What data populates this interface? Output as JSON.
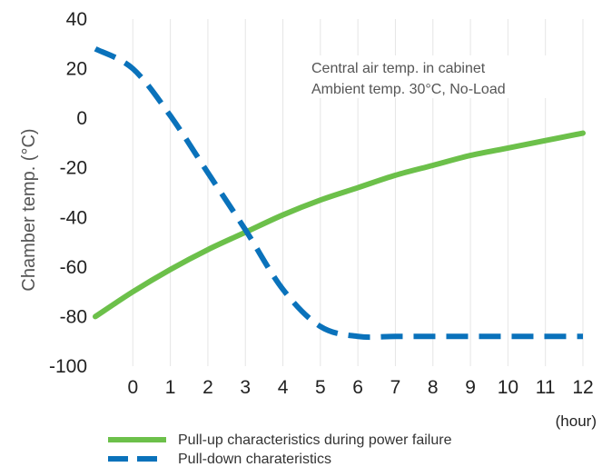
{
  "chart_data": {
    "type": "line",
    "title": "",
    "xlabel": "(hour)",
    "ylabel": "Chamber temp. (°C)",
    "xlim": [
      -1,
      12
    ],
    "ylim": [
      -100,
      40
    ],
    "x_ticks": [
      0,
      1,
      2,
      3,
      4,
      5,
      6,
      7,
      8,
      9,
      10,
      11,
      12
    ],
    "y_ticks": [
      40,
      20,
      0,
      -20,
      -40,
      -60,
      -80,
      -100
    ],
    "x_tick_labels": [
      "0",
      "1",
      "2",
      "3",
      "4",
      "5",
      "6",
      "7",
      "8",
      "9",
      "10",
      "11",
      "12"
    ],
    "y_tick_labels": [
      "40",
      "20",
      "0",
      "-20",
      "-40",
      "-60",
      "-80",
      "-100"
    ],
    "grid": "vertical",
    "annotation": {
      "line1": "Central air temp. in cabinet",
      "line2": "Ambient temp. 30°C, No-Load"
    },
    "legend_placement": "bottom-left",
    "series": [
      {
        "name": "Pull-up characteristics during power failure",
        "style": "solid",
        "color": "#6cc04a",
        "points": [
          [
            -1,
            -80
          ],
          [
            0,
            -70
          ],
          [
            1,
            -61
          ],
          [
            2,
            -53
          ],
          [
            3,
            -46
          ],
          [
            4,
            -39
          ],
          [
            5,
            -33
          ],
          [
            6,
            -28
          ],
          [
            7,
            -23
          ],
          [
            8,
            -19
          ],
          [
            9,
            -15
          ],
          [
            10,
            -12
          ],
          [
            11,
            -9
          ],
          [
            12,
            -6
          ]
        ]
      },
      {
        "name": "Pull-down charateristics",
        "style": "dashed",
        "color": "#0a72bb",
        "points": [
          [
            -1,
            28
          ],
          [
            0,
            20
          ],
          [
            1,
            1
          ],
          [
            2,
            -22
          ],
          [
            3,
            -45
          ],
          [
            4,
            -69
          ],
          [
            5,
            -84
          ],
          [
            6,
            -88
          ],
          [
            7,
            -88
          ],
          [
            8,
            -88
          ],
          [
            9,
            -88
          ],
          [
            10,
            -88
          ],
          [
            11,
            -88
          ],
          [
            12,
            -88
          ]
        ]
      }
    ]
  }
}
